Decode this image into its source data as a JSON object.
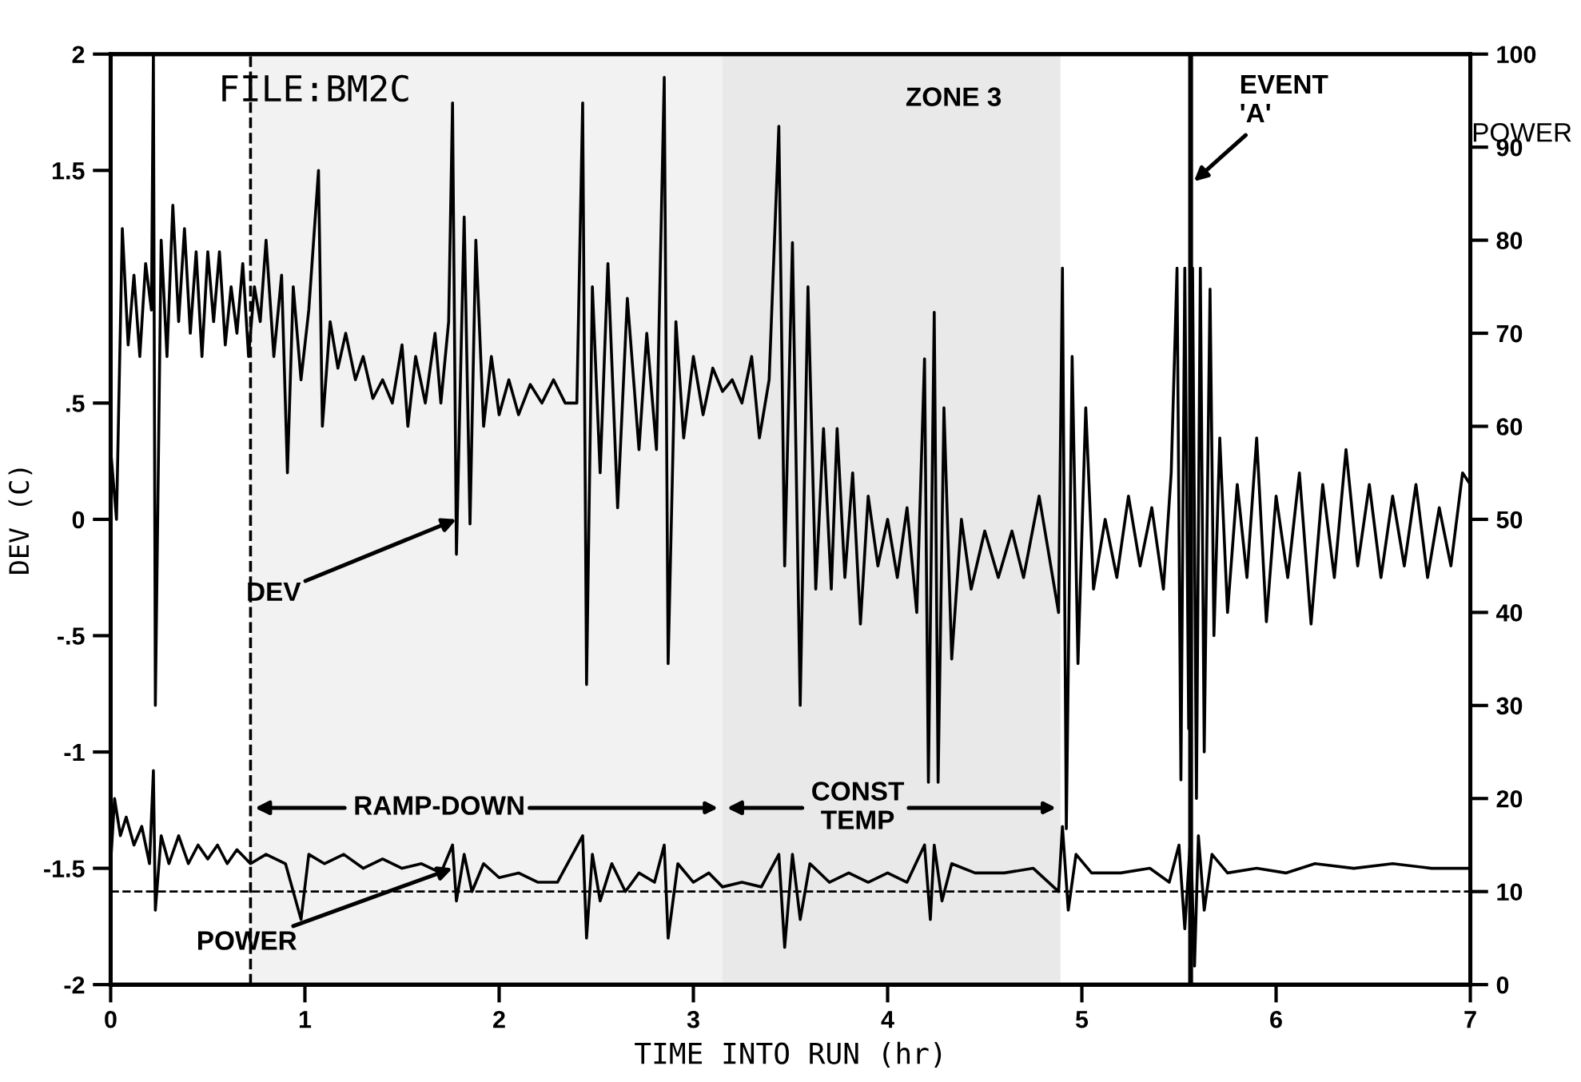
{
  "chart_data": {
    "type": "line",
    "title": "FILE:BM2C",
    "xlabel": "TIME INTO RUN (hr)",
    "ylabel": "DEV (C)",
    "y2label": "POWER",
    "annotations": [
      "ZONE 3",
      {
        "text": "DEV",
        "x": 1.78,
        "y": 0.0
      },
      {
        "text": "POWER",
        "x": 1.76,
        "y": -1.5
      }
    ],
    "xlim": [
      0,
      7
    ],
    "xticks": [
      0,
      1,
      2,
      3,
      4,
      5,
      6,
      7
    ],
    "ylim": [
      -2,
      2
    ],
    "yticks": [
      2,
      1.5,
      {
        "value": 0.5,
        "label": ".5"
      },
      0,
      {
        "value": -0.5,
        "label": "-.5"
      },
      {
        "value": -1,
        "label": "-1"
      },
      {
        "value": -1.5,
        "label": "-1.5"
      },
      {
        "value": -2,
        "label": "-2"
      }
    ],
    "y2lim": [
      0,
      100
    ],
    "y2ticks": [
      0,
      10,
      20,
      30,
      40,
      50,
      60,
      70,
      80,
      90,
      100
    ],
    "grid": false,
    "legend": false,
    "marker": "none",
    "line_style": "solid",
    "ref_lines": [
      {
        "axis": "x",
        "value": 0.72,
        "line_style": "dashed",
        "color": "#000000"
      },
      {
        "axis": "x",
        "value": 5.56,
        "label": "EVENT\n'A'",
        "line_style": "solid",
        "color": "#000000"
      },
      {
        "axis": "y2",
        "value": 10,
        "line_style": "dashed",
        "color": "#000000"
      }
    ],
    "bands": [
      {
        "axis": "x",
        "from": 0.72,
        "to": 3.15,
        "label": "RAMP-DOWN",
        "color": "#f2f2f2"
      },
      {
        "axis": "x",
        "from": 3.15,
        "to": 4.89,
        "label": "CONST\nTEMP",
        "color": "#e9e9e9"
      }
    ],
    "series": [
      {
        "color": "#000000",
        "axis": "y",
        "x": [
          0.0,
          0.03,
          0.06,
          0.09,
          0.12,
          0.15,
          0.18,
          0.21,
          0.22,
          0.23,
          0.26,
          0.29,
          0.32,
          0.35,
          0.38,
          0.41,
          0.44,
          0.47,
          0.5,
          0.53,
          0.56,
          0.59,
          0.62,
          0.65,
          0.68,
          0.71,
          0.74,
          0.77,
          0.8,
          0.84,
          0.88,
          0.91,
          0.94,
          0.98,
          1.02,
          1.07,
          1.09,
          1.13,
          1.17,
          1.21,
          1.26,
          1.3,
          1.35,
          1.4,
          1.45,
          1.5,
          1.53,
          1.57,
          1.62,
          1.67,
          1.7,
          1.74,
          1.76,
          1.78,
          1.82,
          1.85,
          1.88,
          1.92,
          1.96,
          2.0,
          2.05,
          2.1,
          2.16,
          2.22,
          2.28,
          2.34,
          2.4,
          2.43,
          2.45,
          2.48,
          2.52,
          2.56,
          2.61,
          2.66,
          2.72,
          2.76,
          2.81,
          2.85,
          2.87,
          2.91,
          2.95,
          3.0,
          3.05,
          3.1,
          3.15,
          3.2,
          3.25,
          3.3,
          3.34,
          3.39,
          3.44,
          3.47,
          3.51,
          3.55,
          3.59,
          3.63,
          3.67,
          3.71,
          3.74,
          3.78,
          3.82,
          3.86,
          3.9,
          3.95,
          4.0,
          4.05,
          4.1,
          4.15,
          4.19,
          4.21,
          4.24,
          4.26,
          4.29,
          4.33,
          4.38,
          4.43,
          4.5,
          4.57,
          4.64,
          4.7,
          4.78,
          4.84,
          4.88,
          4.9,
          4.92,
          4.95,
          4.98,
          5.02,
          5.06,
          5.12,
          5.18,
          5.24,
          5.3,
          5.36,
          5.42,
          5.46,
          5.49,
          5.51,
          5.53,
          5.55,
          5.57,
          5.59,
          5.61,
          5.63,
          5.66,
          5.68,
          5.71,
          5.75,
          5.8,
          5.85,
          5.9,
          5.95,
          6.0,
          6.06,
          6.12,
          6.18,
          6.24,
          6.3,
          6.36,
          6.42,
          6.48,
          6.54,
          6.6,
          6.66,
          6.72,
          6.78,
          6.84,
          6.9,
          6.96,
          7.0
        ],
        "values": [
          0.3,
          0.0,
          1.25,
          0.75,
          1.05,
          0.7,
          1.1,
          0.9,
          2.0,
          -0.8,
          1.2,
          0.7,
          1.35,
          0.85,
          1.25,
          0.8,
          1.15,
          0.7,
          1.15,
          0.85,
          1.15,
          0.75,
          1.0,
          0.8,
          1.1,
          0.7,
          1.0,
          0.85,
          1.2,
          0.7,
          1.05,
          0.2,
          1.0,
          0.6,
          0.9,
          1.5,
          0.4,
          0.85,
          0.65,
          0.8,
          0.6,
          0.7,
          0.52,
          0.6,
          0.5,
          0.75,
          0.4,
          0.7,
          0.5,
          0.8,
          0.5,
          0.85,
          1.79,
          -0.15,
          1.3,
          -0.02,
          1.2,
          0.4,
          0.7,
          0.45,
          0.6,
          0.45,
          0.58,
          0.5,
          0.6,
          0.5,
          0.5,
          1.79,
          -0.71,
          1.0,
          0.2,
          1.1,
          0.05,
          0.95,
          0.3,
          0.8,
          0.3,
          1.9,
          -0.62,
          0.85,
          0.35,
          0.7,
          0.45,
          0.65,
          0.55,
          0.6,
          0.5,
          0.7,
          0.35,
          0.6,
          1.69,
          -0.2,
          1.19,
          -0.8,
          1.0,
          -0.3,
          0.39,
          -0.3,
          0.39,
          -0.25,
          0.2,
          -0.45,
          0.1,
          -0.2,
          0.0,
          -0.25,
          0.05,
          -0.4,
          0.69,
          -1.13,
          0.89,
          -1.13,
          0.48,
          -0.6,
          0.0,
          -0.3,
          -0.05,
          -0.25,
          -0.05,
          -0.25,
          0.1,
          -0.2,
          -0.4,
          1.08,
          -1.33,
          0.7,
          -0.62,
          0.48,
          -0.3,
          0.0,
          -0.25,
          0.1,
          -0.2,
          0.05,
          -0.3,
          0.2,
          1.08,
          -1.12,
          1.08,
          -0.9,
          1.08,
          -1.2,
          1.08,
          -1.0,
          0.99,
          -0.5,
          0.35,
          -0.4,
          0.15,
          -0.25,
          0.35,
          -0.44,
          0.1,
          -0.25,
          0.2,
          -0.45,
          0.15,
          -0.25,
          0.3,
          -0.2,
          0.15,
          -0.25,
          0.1,
          -0.2,
          0.15,
          -0.25,
          0.05,
          -0.2,
          0.2,
          0.15
        ]
      },
      {
        "color": "#000000",
        "axis": "y2",
        "x": [
          0.0,
          0.02,
          0.05,
          0.08,
          0.12,
          0.16,
          0.2,
          0.22,
          0.23,
          0.26,
          0.3,
          0.35,
          0.4,
          0.45,
          0.5,
          0.55,
          0.6,
          0.65,
          0.72,
          0.8,
          0.9,
          0.98,
          1.02,
          1.1,
          1.2,
          1.3,
          1.4,
          1.5,
          1.6,
          1.7,
          1.76,
          1.78,
          1.82,
          1.86,
          1.92,
          2.0,
          2.1,
          2.2,
          2.3,
          2.43,
          2.45,
          2.48,
          2.52,
          2.58,
          2.65,
          2.72,
          2.8,
          2.85,
          2.87,
          2.92,
          3.0,
          3.08,
          3.15,
          3.25,
          3.35,
          3.44,
          3.47,
          3.51,
          3.55,
          3.6,
          3.7,
          3.8,
          3.9,
          4.0,
          4.1,
          4.19,
          4.22,
          4.24,
          4.28,
          4.33,
          4.45,
          4.6,
          4.75,
          4.88,
          4.9,
          4.93,
          4.97,
          5.05,
          5.2,
          5.35,
          5.45,
          5.5,
          5.53,
          5.56,
          5.58,
          5.6,
          5.63,
          5.67,
          5.75,
          5.9,
          6.05,
          6.2,
          6.4,
          6.6,
          6.8,
          7.0
        ],
        "values": [
          13,
          20,
          16,
          18,
          15,
          17,
          13,
          23,
          8,
          16,
          13,
          16,
          13,
          15,
          13.5,
          15,
          13,
          14.5,
          13,
          14,
          13,
          7,
          14,
          13,
          14,
          12.5,
          13.5,
          12.5,
          13,
          12,
          15,
          9,
          14,
          10,
          13,
          11.5,
          12,
          11,
          11,
          16,
          5,
          14,
          9,
          13,
          10,
          12,
          11,
          15,
          5,
          13,
          11,
          12,
          10.5,
          11,
          10.5,
          14,
          4,
          14,
          7,
          13,
          11,
          12,
          11,
          12,
          11,
          15,
          7,
          15,
          9,
          13,
          12,
          12,
          12.5,
          10,
          17,
          8,
          14,
          12,
          12,
          12.5,
          11,
          15,
          6,
          16,
          2,
          16,
          8,
          14,
          12,
          12.5,
          12,
          13,
          12.5,
          13,
          12.5,
          12.5
        ]
      }
    ]
  }
}
